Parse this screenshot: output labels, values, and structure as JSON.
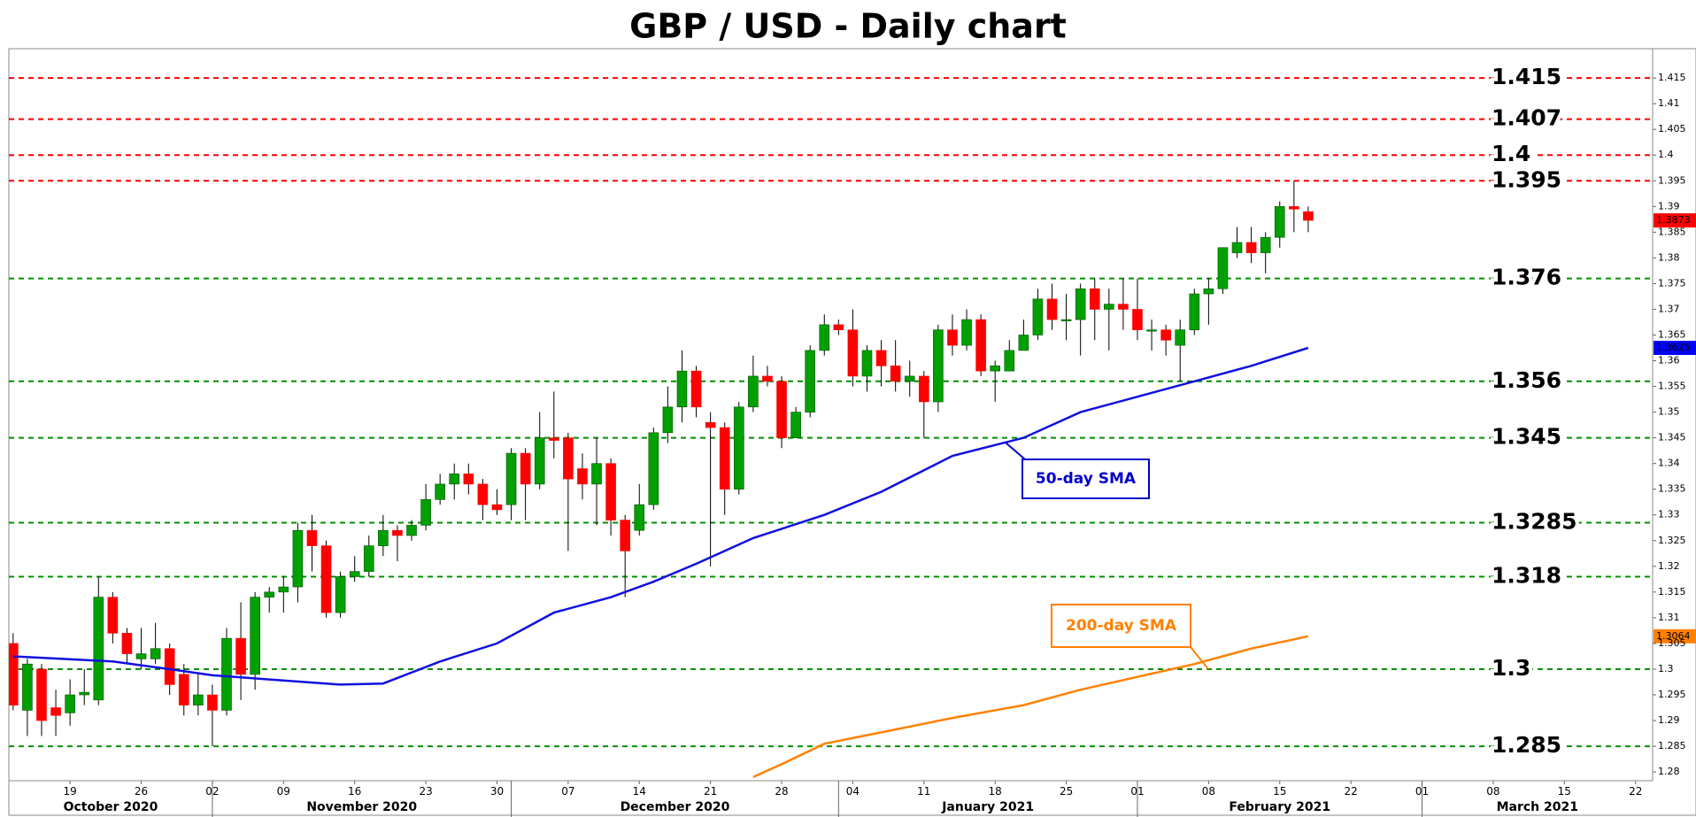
{
  "chart_data": {
    "type": "candlestick",
    "title": "GBP / USD - Daily chart",
    "xlim": [
      -0.3,
      115.2
    ],
    "ylim": [
      1.2783,
      1.4207
    ],
    "yticks": [
      1.28,
      1.285,
      1.29,
      1.295,
      1.3,
      1.305,
      1.31,
      1.315,
      1.32,
      1.325,
      1.33,
      1.335,
      1.34,
      1.345,
      1.35,
      1.355,
      1.36,
      1.365,
      1.37,
      1.375,
      1.38,
      1.385,
      1.39,
      1.395,
      1.4,
      1.405,
      1.41,
      1.415
    ],
    "xticks": [
      {
        "value": 4,
        "label": "19"
      },
      {
        "value": 9,
        "label": "26"
      },
      {
        "value": 14,
        "label": "02"
      },
      {
        "value": 19,
        "label": "09"
      },
      {
        "value": 24,
        "label": "16"
      },
      {
        "value": 29,
        "label": "23"
      },
      {
        "value": 34,
        "label": "30"
      },
      {
        "value": 39,
        "label": "07"
      },
      {
        "value": 44,
        "label": "14"
      },
      {
        "value": 49,
        "label": "21"
      },
      {
        "value": 54,
        "label": "28"
      },
      {
        "value": 59,
        "label": "04"
      },
      {
        "value": 64,
        "label": "11"
      },
      {
        "value": 69,
        "label": "18"
      },
      {
        "value": 74,
        "label": "25"
      },
      {
        "value": 79,
        "label": "01"
      },
      {
        "value": 84,
        "label": "08"
      },
      {
        "value": 89,
        "label": "15"
      },
      {
        "value": 94,
        "label": "22"
      },
      {
        "value": 99,
        "label": "01"
      },
      {
        "value": 104,
        "label": "08"
      },
      {
        "value": 109,
        "label": "15"
      },
      {
        "value": 114,
        "label": "22"
      }
    ],
    "month_ticks": [
      {
        "value": -8,
        "label": "October 2020"
      },
      {
        "value": 14,
        "label": "November 2020"
      },
      {
        "value": 35,
        "label": "December 2020"
      },
      {
        "value": 58,
        "label": "January 2021"
      },
      {
        "value": 79,
        "label": "February 2021"
      },
      {
        "value": 99,
        "label": "March 2021"
      }
    ],
    "up_color": "#00a000",
    "down_color": "#ff0000",
    "open": [
      1.305,
      1.292,
      1.3,
      1.2925,
      1.2915,
      1.295,
      1.294,
      1.314,
      1.307,
      1.302,
      1.302,
      1.304,
      1.299,
      1.293,
      1.295,
      1.292,
      1.306,
      1.299,
      1.314,
      1.315,
      1.316,
      1.327,
      1.324,
      1.311,
      1.318,
      1.319,
      1.324,
      1.327,
      1.326,
      1.328,
      1.333,
      1.336,
      1.338,
      1.336,
      1.332,
      1.332,
      1.342,
      1.336,
      1.345,
      1.345,
      1.339,
      1.336,
      1.34,
      1.329,
      1.327,
      1.332,
      1.346,
      1.351,
      1.358,
      1.348,
      1.347,
      1.335,
      1.351,
      1.357,
      1.356,
      1.345,
      1.35,
      1.362,
      1.367,
      1.366,
      1.357,
      1.362,
      1.359,
      1.356,
      1.357,
      1.352,
      1.366,
      1.363,
      1.368,
      1.358,
      1.358,
      1.362,
      1.365,
      1.372,
      1.368,
      1.368,
      1.374,
      1.37,
      1.371,
      1.37,
      1.366,
      1.366,
      1.363,
      1.366,
      1.373,
      1.374,
      1.381,
      1.383,
      1.381,
      1.384,
      1.39,
      1.389
    ],
    "high": [
      1.307,
      1.302,
      1.301,
      1.296,
      1.298,
      1.3,
      1.318,
      1.315,
      1.308,
      1.308,
      1.309,
      1.305,
      1.301,
      1.299,
      1.297,
      1.308,
      1.313,
      1.315,
      1.316,
      1.318,
      1.3285,
      1.33,
      1.325,
      1.319,
      1.322,
      1.326,
      1.33,
      1.328,
      1.329,
      1.336,
      1.338,
      1.34,
      1.34,
      1.337,
      1.335,
      1.343,
      1.343,
      1.35,
      1.354,
      1.346,
      1.342,
      1.345,
      1.341,
      1.33,
      1.336,
      1.347,
      1.355,
      1.362,
      1.359,
      1.35,
      1.348,
      1.352,
      1.361,
      1.359,
      1.357,
      1.351,
      1.363,
      1.369,
      1.368,
      1.37,
      1.363,
      1.364,
      1.364,
      1.36,
      1.358,
      1.367,
      1.369,
      1.37,
      1.369,
      1.36,
      1.364,
      1.368,
      1.374,
      1.375,
      1.373,
      1.375,
      1.376,
      1.374,
      1.376,
      1.376,
      1.368,
      1.367,
      1.368,
      1.374,
      1.376,
      1.382,
      1.386,
      1.386,
      1.385,
      1.391,
      1.395,
      1.39
    ],
    "low": [
      1.292,
      1.287,
      1.287,
      1.287,
      1.289,
      1.293,
      1.293,
      1.305,
      1.301,
      1.3,
      1.301,
      1.295,
      1.291,
      1.291,
      1.285,
      1.291,
      1.294,
      1.296,
      1.311,
      1.311,
      1.313,
      1.319,
      1.31,
      1.31,
      1.317,
      1.318,
      1.322,
      1.321,
      1.325,
      1.327,
      1.332,
      1.333,
      1.334,
      1.329,
      1.33,
      1.329,
      1.329,
      1.335,
      1.341,
      1.323,
      1.333,
      1.328,
      1.326,
      1.314,
      1.326,
      1.331,
      1.344,
      1.348,
      1.349,
      1.32,
      1.33,
      1.334,
      1.35,
      1.355,
      1.343,
      1.345,
      1.349,
      1.361,
      1.365,
      1.355,
      1.354,
      1.355,
      1.354,
      1.353,
      1.345,
      1.35,
      1.361,
      1.362,
      1.357,
      1.352,
      1.358,
      1.362,
      1.364,
      1.366,
      1.364,
      1.361,
      1.364,
      1.362,
      1.366,
      1.364,
      1.362,
      1.361,
      1.356,
      1.365,
      1.367,
      1.373,
      1.38,
      1.379,
      1.377,
      1.382,
      1.385,
      1.385
    ],
    "close": [
      1.293,
      1.301,
      1.29,
      1.291,
      1.295,
      1.2955,
      1.314,
      1.307,
      1.303,
      1.303,
      1.304,
      1.297,
      1.293,
      1.295,
      1.292,
      1.306,
      1.299,
      1.314,
      1.315,
      1.316,
      1.327,
      1.324,
      1.311,
      1.318,
      1.319,
      1.324,
      1.327,
      1.326,
      1.328,
      1.333,
      1.336,
      1.338,
      1.336,
      1.332,
      1.331,
      1.342,
      1.336,
      1.345,
      1.3445,
      1.337,
      1.336,
      1.34,
      1.329,
      1.323,
      1.332,
      1.346,
      1.351,
      1.358,
      1.351,
      1.347,
      1.335,
      1.351,
      1.357,
      1.356,
      1.345,
      1.35,
      1.362,
      1.367,
      1.366,
      1.357,
      1.362,
      1.359,
      1.356,
      1.357,
      1.352,
      1.366,
      1.363,
      1.368,
      1.358,
      1.359,
      1.362,
      1.365,
      1.372,
      1.368,
      1.368,
      1.374,
      1.37,
      1.371,
      1.37,
      1.366,
      1.366,
      1.364,
      1.366,
      1.373,
      1.374,
      1.382,
      1.383,
      1.381,
      1.384,
      1.39,
      1.3895,
      1.3873
    ],
    "series": [
      {
        "name": "50-day SMA",
        "color": "#1010e0",
        "x": [
          0,
          7,
          11,
          14,
          18,
          23,
          26,
          30,
          34,
          38,
          42,
          45,
          48,
          52,
          57,
          61,
          66,
          71,
          75,
          79,
          83,
          87,
          91
        ],
        "values": [
          1.3025,
          1.3015,
          1.3,
          1.2988,
          1.298,
          1.297,
          1.2972,
          1.3015,
          1.305,
          1.311,
          1.314,
          1.317,
          1.3205,
          1.3255,
          1.33,
          1.3345,
          1.3415,
          1.345,
          1.35,
          1.353,
          1.356,
          1.359,
          1.3625
        ]
      },
      {
        "name": "200-day SMA",
        "color": "#ff8000",
        "x": [
          52,
          54,
          57,
          61,
          66,
          71,
          75,
          79,
          83,
          87,
          91
        ],
        "values": [
          1.279,
          1.2815,
          1.2855,
          1.2877,
          1.2905,
          1.293,
          1.296,
          1.2985,
          1.301,
          1.304,
          1.3064
        ]
      }
    ],
    "levels": [
      {
        "value": 1.415,
        "color": "#ff0000"
      },
      {
        "value": 1.407,
        "color": "#ff0000"
      },
      {
        "value": 1.4,
        "color": "#ff0000"
      },
      {
        "value": 1.395,
        "color": "#ff0000"
      },
      {
        "value": 1.376,
        "color": "#009000"
      },
      {
        "value": 1.356,
        "color": "#009000"
      },
      {
        "value": 1.345,
        "color": "#009000"
      },
      {
        "value": 1.3285,
        "color": "#009000"
      },
      {
        "value": 1.318,
        "color": "#009000"
      },
      {
        "value": 1.3,
        "color": "#009000"
      },
      {
        "value": 1.285,
        "color": "#009000"
      }
    ],
    "price_labels": [
      {
        "value": 1.3873,
        "color": "#ff0000"
      },
      {
        "value": 1.3625,
        "color": "#0000ff"
      },
      {
        "value": 1.3064,
        "color": "#ff8000"
      }
    ],
    "annotations": [
      {
        "text": "50-day SMA",
        "color": "#0000cc"
      },
      {
        "text": "200-day SMA",
        "color": "#ff8000"
      }
    ]
  }
}
